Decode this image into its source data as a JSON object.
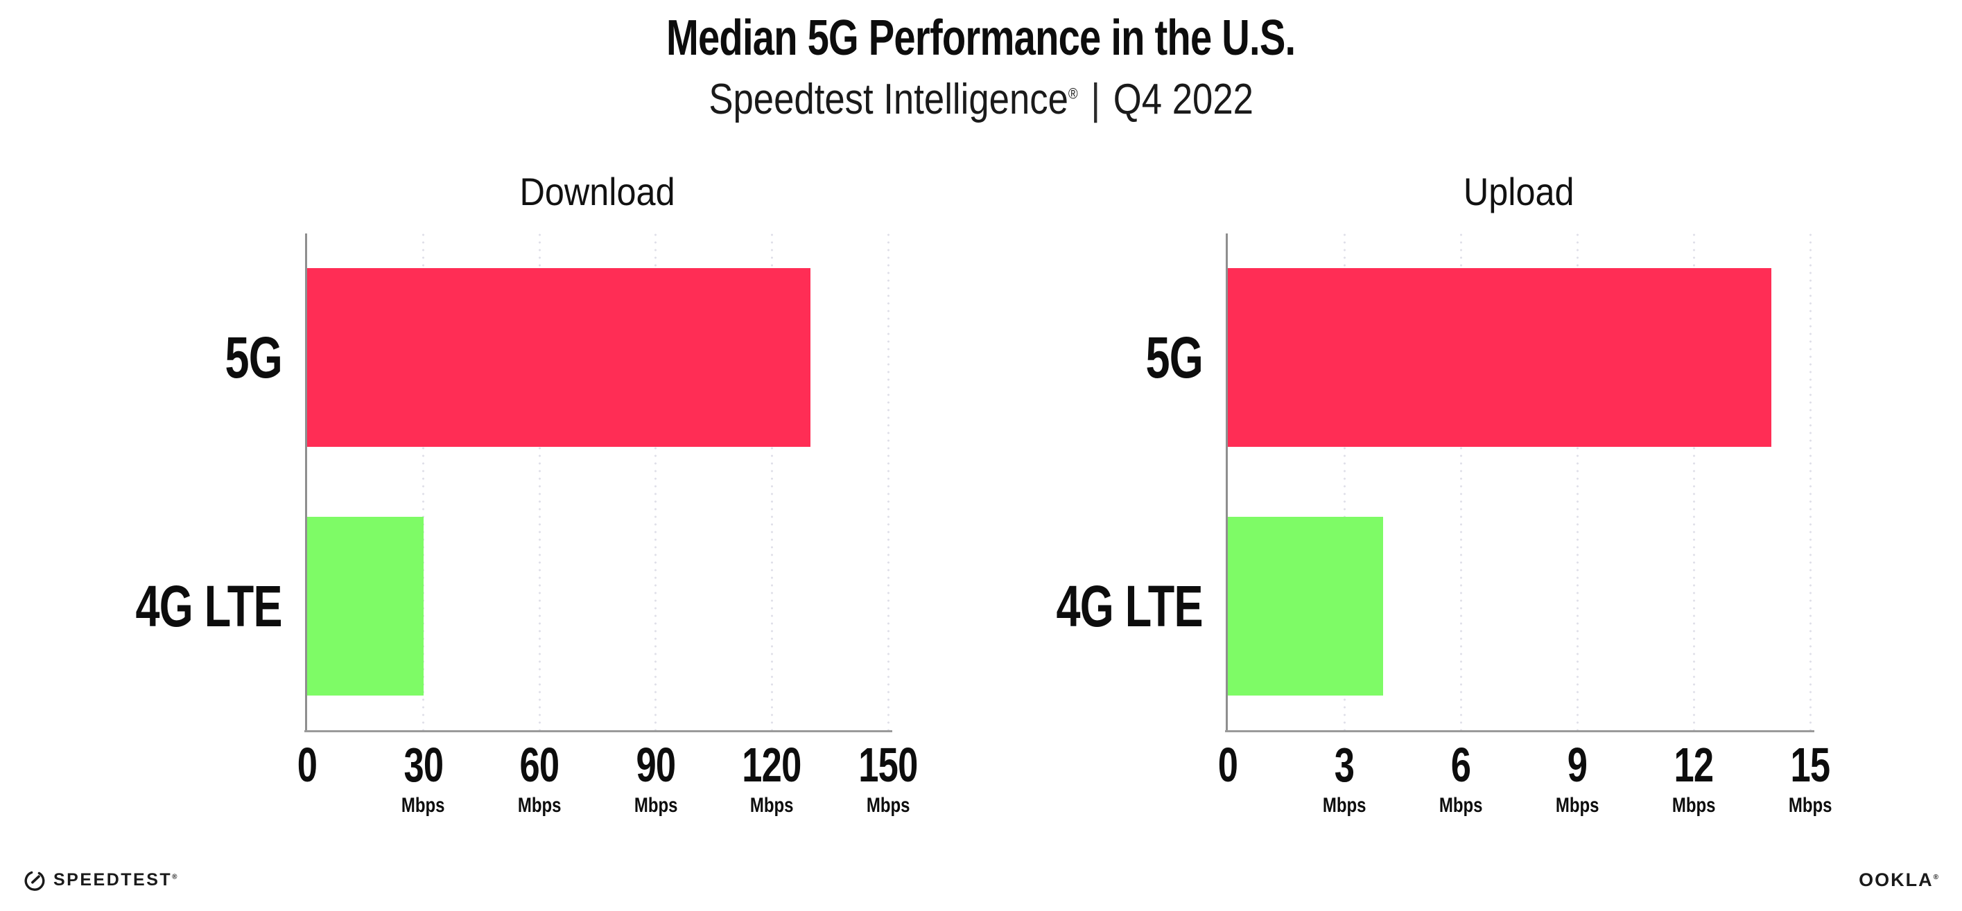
{
  "header": {
    "title": "Median 5G Performance in the U.S.",
    "subtitle_brand": "Speedtest Intelligence",
    "subtitle_reg": "®",
    "subtitle_sep": "|",
    "subtitle_period": "Q4 2022"
  },
  "colors": {
    "bar_5g": "#FF2D55",
    "bar_4g_lte": "#7EFB66",
    "axis": "#8f8f8f",
    "gridline": "#dfdfe8",
    "text": "#111111",
    "background": "#ffffff"
  },
  "chart_data": [
    {
      "type": "bar",
      "orientation": "horizontal",
      "title": "Download",
      "categories": [
        "5G",
        "4G LTE"
      ],
      "values": [
        130,
        30
      ],
      "bar_colors": [
        "#FF2D55",
        "#7EFB66"
      ],
      "unit": "Mbps",
      "xlim": [
        0,
        150
      ],
      "xticks": [
        0,
        30,
        60,
        90,
        120,
        150
      ],
      "grid": true,
      "legend": "none"
    },
    {
      "type": "bar",
      "orientation": "horizontal",
      "title": "Upload",
      "categories": [
        "5G",
        "4G LTE"
      ],
      "values": [
        14,
        4
      ],
      "bar_colors": [
        "#FF2D55",
        "#7EFB66"
      ],
      "unit": "Mbps",
      "xlim": [
        0,
        15
      ],
      "xticks": [
        0,
        3,
        6,
        9,
        12,
        15
      ],
      "grid": true,
      "legend": "none"
    }
  ],
  "footer": {
    "speedtest_label": "SPEEDTEST",
    "speedtest_mark": "®",
    "ookla_label": "OOKLA",
    "ookla_mark": "®"
  }
}
